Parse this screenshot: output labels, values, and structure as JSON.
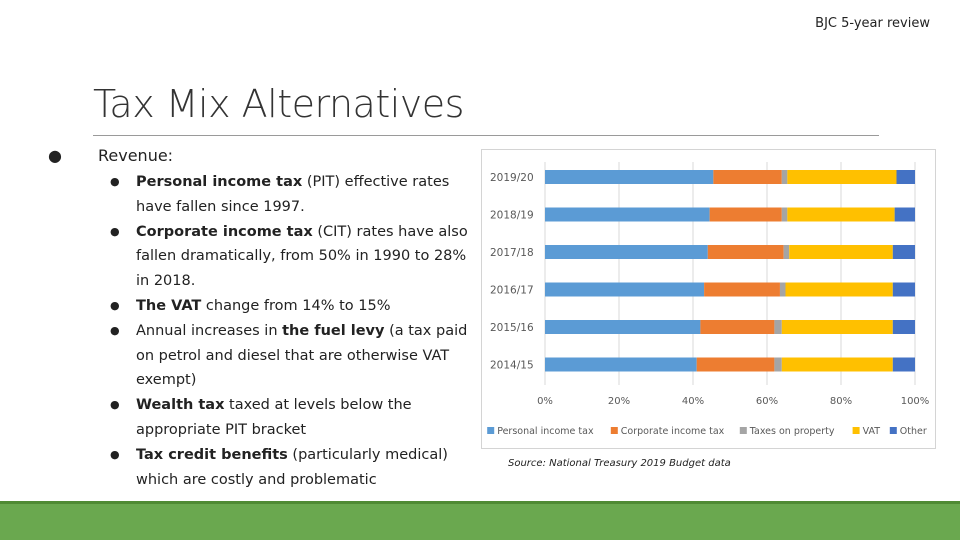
{
  "header_note": "BJC 5-year review",
  "title": "Tax Mix Alternatives",
  "revenue_label": "Revenue:",
  "bullets": [
    {
      "bold": "Personal income tax",
      "text": " (PIT) effective rates have fallen since 1997."
    },
    {
      "bold": "Corporate income tax",
      "text": " (CIT) rates have also fallen dramatically, from 50% in 1990 to 28% in 2018."
    },
    {
      "bold": "The VAT",
      "text": " change from 14% to 15%"
    },
    {
      "pre": "Annual increases in ",
      "bold": "the fuel levy",
      "text": " (a tax paid on petrol and diesel that are otherwise VAT exempt)"
    },
    {
      "bold": "Wealth tax",
      "text": " taxed at levels below the appropriate PIT bracket"
    },
    {
      "bold": "Tax credit benefits",
      "text": " (particularly medical) which are costly and problematic"
    }
  ],
  "source_note": "Source: National Treasury 2019 Budget data",
  "colors": {
    "pit": "#5b9bd5",
    "cit": "#ed7d31",
    "property": "#a5a5a5",
    "vat": "#ffc000",
    "other": "#4472c4",
    "footer": "#6aa84f"
  },
  "chart_data": {
    "type": "bar",
    "orientation": "horizontal",
    "stacked": "percent",
    "categories": [
      "2019/20",
      "2018/19",
      "2017/18",
      "2016/17",
      "2015/16",
      "2014/15"
    ],
    "series": [
      {
        "name": "Personal income tax",
        "color": "#5b9bd5",
        "values": [
          45.5,
          44.5,
          44,
          43,
          42,
          41
        ]
      },
      {
        "name": "Corporate income tax",
        "color": "#ed7d31",
        "values": [
          18.5,
          19.5,
          20.5,
          20.5,
          20,
          21
        ]
      },
      {
        "name": "Taxes on property",
        "color": "#a5a5a5",
        "values": [
          1.5,
          1.5,
          1.5,
          1.5,
          2,
          2
        ]
      },
      {
        "name": "VAT",
        "color": "#ffc000",
        "values": [
          29.5,
          29,
          28,
          29,
          30,
          30
        ]
      },
      {
        "name": "Other",
        "color": "#4472c4",
        "values": [
          5,
          5.5,
          6,
          6,
          6,
          6
        ]
      }
    ],
    "x_ticks": [
      "0%",
      "20%",
      "40%",
      "60%",
      "80%",
      "100%"
    ],
    "xlim": [
      0,
      100
    ],
    "grid": true,
    "legend_position": "bottom"
  }
}
